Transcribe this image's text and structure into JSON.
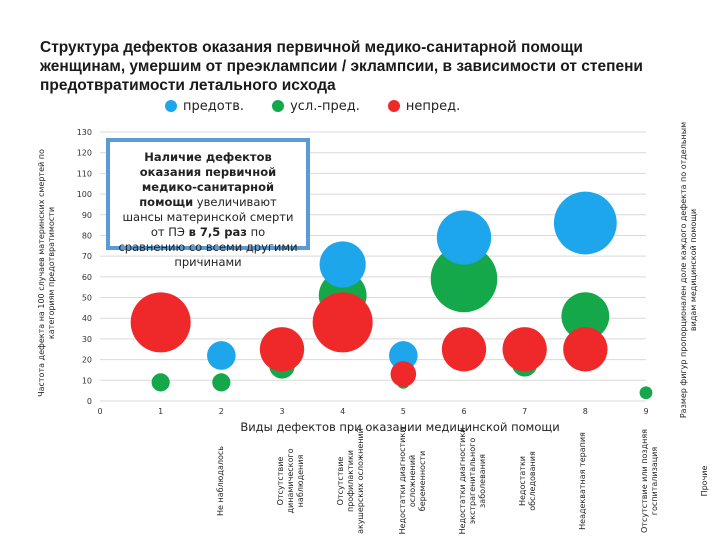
{
  "title_lines": [
    "Структура дефектов оказания первичной медико-санитарной помощи",
    "женщинам, умершим от преэклампсии / эклампсии, в зависимости от степени",
    "предотвратимости летального исхода"
  ],
  "legend": [
    {
      "label": "предотв.",
      "color": "#1ea6ec"
    },
    {
      "label": "усл.-пред.",
      "color": "#14a84a"
    },
    {
      "label": "непред.",
      "color": "#ef2929"
    }
  ],
  "note": {
    "bold1": "Наличие дефектов оказания первичной медико-санитарной помощи",
    "rest1": " увеличивают шансы материнской смерти от ПЭ ",
    "bold2": "в 7,5 раз",
    "rest2": " по сравнению со всеми другими причинами"
  },
  "y_axis_label": "Частота дефекта на 100 случаев материнских смертей по категориям предотвратимости",
  "y2_axis_label": "Размер фигур пропорционален доле каждого дефекта по отдельным видам медицинской помощи",
  "x_axis_label": "Виды дефектов при оказании медицинской помощи",
  "categories": [
    "Не наблюдалось",
    "Отсутствие динамического наблюдения",
    "Отсутствие профилактики акушерских осложнений",
    "Недостатки диагностики осложнений беременности",
    "Недостатки диагностики экстрагенитального заболевания",
    "Недостатки обследования",
    "Неадекватная терапия",
    "Отсутствие или поздняя госпитализация",
    "Прочие"
  ],
  "chart_data": {
    "type": "scatter",
    "subtype": "bubble",
    "title": "Структура дефектов оказания первичной медико-санитарной помощи женщинам, умершим от преэклампсии / эклампсии, в зависимости от степени предотвратимости летального исхода",
    "xlabel": "Виды дефектов при оказании медицинской помощи",
    "ylabel": "Частота дефекта на 100 случаев материнских смертей по категориям предотвратимости",
    "xlim": [
      0,
      9
    ],
    "ylim": [
      0,
      130
    ],
    "x_ticks": [
      0,
      1,
      2,
      3,
      4,
      5,
      6,
      7,
      8,
      9
    ],
    "y_ticks": [
      0,
      10,
      20,
      30,
      40,
      50,
      60,
      70,
      80,
      90,
      100,
      110,
      120,
      130
    ],
    "series": [
      {
        "name": "предотв.",
        "color": "#1ea6ec",
        "points": [
          {
            "x": 2,
            "y": 22,
            "size": 5
          },
          {
            "x": 3,
            "y": 24,
            "size": 5
          },
          {
            "x": 4,
            "y": 66,
            "size": 13
          },
          {
            "x": 5,
            "y": 22,
            "size": 5
          },
          {
            "x": 6,
            "y": 79,
            "size": 18
          },
          {
            "x": 8,
            "y": 86,
            "size": 24
          }
        ]
      },
      {
        "name": "усл.-пред.",
        "color": "#14a84a",
        "points": [
          {
            "x": 1,
            "y": 9,
            "size": 2
          },
          {
            "x": 2,
            "y": 9,
            "size": 2
          },
          {
            "x": 3,
            "y": 17,
            "size": 4
          },
          {
            "x": 4,
            "y": 51,
            "size": 14
          },
          {
            "x": 5,
            "y": 9,
            "size": 1
          },
          {
            "x": 6,
            "y": 59,
            "size": 27
          },
          {
            "x": 7,
            "y": 18,
            "size": 4
          },
          {
            "x": 8,
            "y": 41,
            "size": 14
          },
          {
            "x": 9,
            "y": 4,
            "size": 1
          }
        ]
      },
      {
        "name": "непред.",
        "color": "#ef2929",
        "points": [
          {
            "x": 1,
            "y": 38,
            "size": 22
          },
          {
            "x": 3,
            "y": 25,
            "size": 12
          },
          {
            "x": 4,
            "y": 38,
            "size": 22
          },
          {
            "x": 5,
            "y": 13,
            "size": 4
          },
          {
            "x": 6,
            "y": 25,
            "size": 12
          },
          {
            "x": 7,
            "y": 25,
            "size": 12
          },
          {
            "x": 8,
            "y": 25,
            "size": 12
          }
        ]
      }
    ]
  }
}
